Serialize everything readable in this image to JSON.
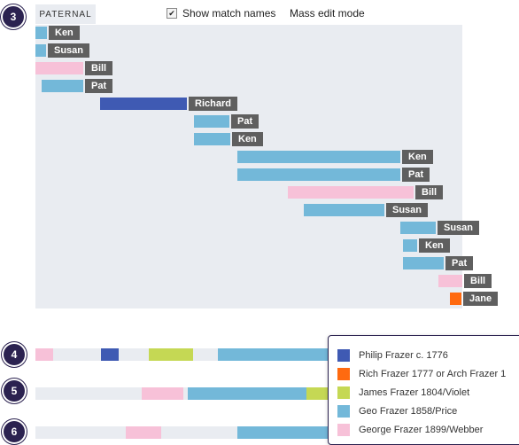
{
  "chromosome_tab": "PATERNAL",
  "options": {
    "show_match_names": "Show match names",
    "show_match_names_checked": true,
    "mass_edit": "Mass edit mode"
  },
  "colors": {
    "blue_dark": "#3f5ab3",
    "blue_light": "#73b8d9",
    "pink": "#f7c1d8",
    "orange": "#ff6a10",
    "lime": "#c5d854"
  },
  "rows": {
    "row3": {
      "number": "3",
      "segments": [
        {
          "name": "Ken",
          "color": "#73b8d9"
        },
        {
          "name": "Susan",
          "color": "#73b8d9"
        },
        {
          "name": "Bill",
          "color": "#f7c1d8"
        },
        {
          "name": "Pat",
          "color": "#73b8d9"
        },
        {
          "name": "Richard",
          "color": "#3f5ab3"
        },
        {
          "name": "Pat",
          "color": "#73b8d9"
        },
        {
          "name": "Ken",
          "color": "#73b8d9"
        },
        {
          "name": "Ken",
          "color": "#73b8d9"
        },
        {
          "name": "Pat",
          "color": "#73b8d9"
        },
        {
          "name": "Bill",
          "color": "#f7c1d8"
        },
        {
          "name": "Susan",
          "color": "#73b8d9"
        },
        {
          "name": "Susan",
          "color": "#73b8d9"
        },
        {
          "name": "Ken",
          "color": "#73b8d9"
        },
        {
          "name": "Pat",
          "color": "#73b8d9"
        },
        {
          "name": "Bill",
          "color": "#f7c1d8"
        },
        {
          "name": "Jane",
          "color": "#ff6a10"
        }
      ]
    },
    "row4": {
      "number": "4"
    },
    "row5": {
      "number": "5"
    },
    "row6": {
      "number": "6"
    }
  },
  "legend": [
    {
      "label": "Philip Frazer c. 1776",
      "color": "#3f5ab3"
    },
    {
      "label": "Rich Frazer 1777 or Arch Frazer 1",
      "color": "#ff6a10"
    },
    {
      "label": "James Frazer 1804/Violet",
      "color": "#c5d854"
    },
    {
      "label": "Geo Frazer 1858/Price",
      "color": "#73b8d9"
    },
    {
      "label": "George Frazer 1899/Webber",
      "color": "#f7c1d8"
    }
  ]
}
